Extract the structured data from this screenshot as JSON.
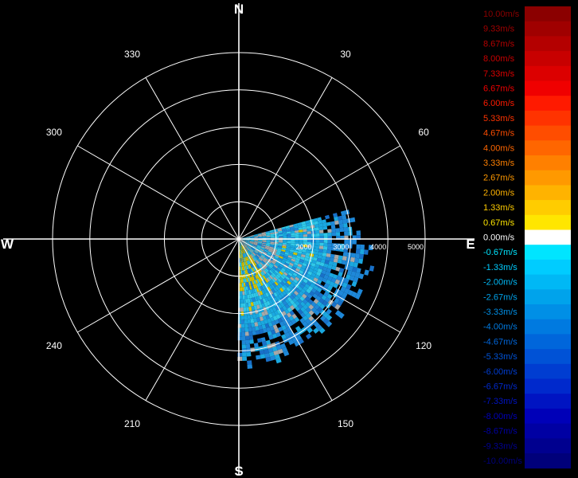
{
  "chart_data": {
    "type": "polar-radar-velocity",
    "cardinals": {
      "north": "N",
      "east": "E",
      "south": "S",
      "west": "W"
    },
    "angle_labels": [
      {
        "deg": 30,
        "text": "30"
      },
      {
        "deg": 60,
        "text": "60"
      },
      {
        "deg": 120,
        "text": "120"
      },
      {
        "deg": 150,
        "text": "150"
      },
      {
        "deg": 210,
        "text": "210"
      },
      {
        "deg": 240,
        "text": "240"
      },
      {
        "deg": 300,
        "text": "300"
      },
      {
        "deg": 330,
        "text": "330"
      }
    ],
    "spokes_deg": [
      0,
      30,
      60,
      90,
      120,
      150,
      180,
      210,
      240,
      270,
      300,
      330
    ],
    "rings": [
      1000,
      2000,
      3000,
      4000,
      5000
    ],
    "ring_labels": [
      {
        "value": 2000,
        "text": "2000"
      },
      {
        "value": 3000,
        "text": "3000"
      },
      {
        "value": 4000,
        "text": "4000"
      },
      {
        "value": 5000,
        "text": "5000"
      }
    ],
    "max_range": 5000,
    "sector": {
      "start_deg": 75,
      "end_deg": 180,
      "max_range_by_angle": [
        [
          75,
          3100
        ],
        [
          90,
          3500
        ],
        [
          110,
          3600
        ],
        [
          125,
          3500
        ],
        [
          140,
          3300
        ],
        [
          155,
          3400
        ],
        [
          170,
          3500
        ],
        [
          180,
          3300
        ]
      ]
    },
    "legend": [
      {
        "label": "10.00m/s",
        "color": "#8b0000"
      },
      {
        "label": "9.33m/s",
        "color": "#a00000"
      },
      {
        "label": "8.67m/s",
        "color": "#b40000"
      },
      {
        "label": "8.00m/s",
        "color": "#c80000"
      },
      {
        "label": "7.33m/s",
        "color": "#dc0000"
      },
      {
        "label": "6.67m/s",
        "color": "#f00000"
      },
      {
        "label": "6.00m/s",
        "color": "#ff1a00"
      },
      {
        "label": "5.33m/s",
        "color": "#ff3300"
      },
      {
        "label": "4.67m/s",
        "color": "#ff4d00"
      },
      {
        "label": "4.00m/s",
        "color": "#ff6600"
      },
      {
        "label": "3.33m/s",
        "color": "#ff8000"
      },
      {
        "label": "2.67m/s",
        "color": "#ff9900"
      },
      {
        "label": "2.00m/s",
        "color": "#ffb300"
      },
      {
        "label": "1.33m/s",
        "color": "#ffcc00"
      },
      {
        "label": "0.67m/s",
        "color": "#ffe600"
      },
      {
        "label": "0.00m/s",
        "color": "#ffffff"
      },
      {
        "label": "-0.67m/s",
        "color": "#00e5ff"
      },
      {
        "label": "-1.33m/s",
        "color": "#00ccff"
      },
      {
        "label": "-2.00m/s",
        "color": "#00b8f5"
      },
      {
        "label": "-2.67m/s",
        "color": "#00a3eb"
      },
      {
        "label": "-3.33m/s",
        "color": "#008fe6"
      },
      {
        "label": "-4.00m/s",
        "color": "#007ae0"
      },
      {
        "label": "-4.67m/s",
        "color": "#0066db"
      },
      {
        "label": "-5.33m/s",
        "color": "#0052d6"
      },
      {
        "label": "-6.00m/s",
        "color": "#003dd1"
      },
      {
        "label": "-6.67m/s",
        "color": "#0029cc"
      },
      {
        "label": "-7.33m/s",
        "color": "#0014c2"
      },
      {
        "label": "-8.00m/s",
        "color": "#0000b8"
      },
      {
        "label": "-8.67m/s",
        "color": "#0000a3"
      },
      {
        "label": "-9.33m/s",
        "color": "#00008f"
      },
      {
        "label": "-10.00m/s",
        "color": "#00007a"
      }
    ],
    "data_palette": {
      "gray": "#a8a8a8",
      "yellow": "#d4c300",
      "light_cyan": "#30c8e8",
      "cyan": "#1aa8e0",
      "blue": "#1e88d8",
      "deep_blue": "#1870c8",
      "white": "#ffffff"
    },
    "grid_color": "#ffffff",
    "background": "#000000"
  }
}
